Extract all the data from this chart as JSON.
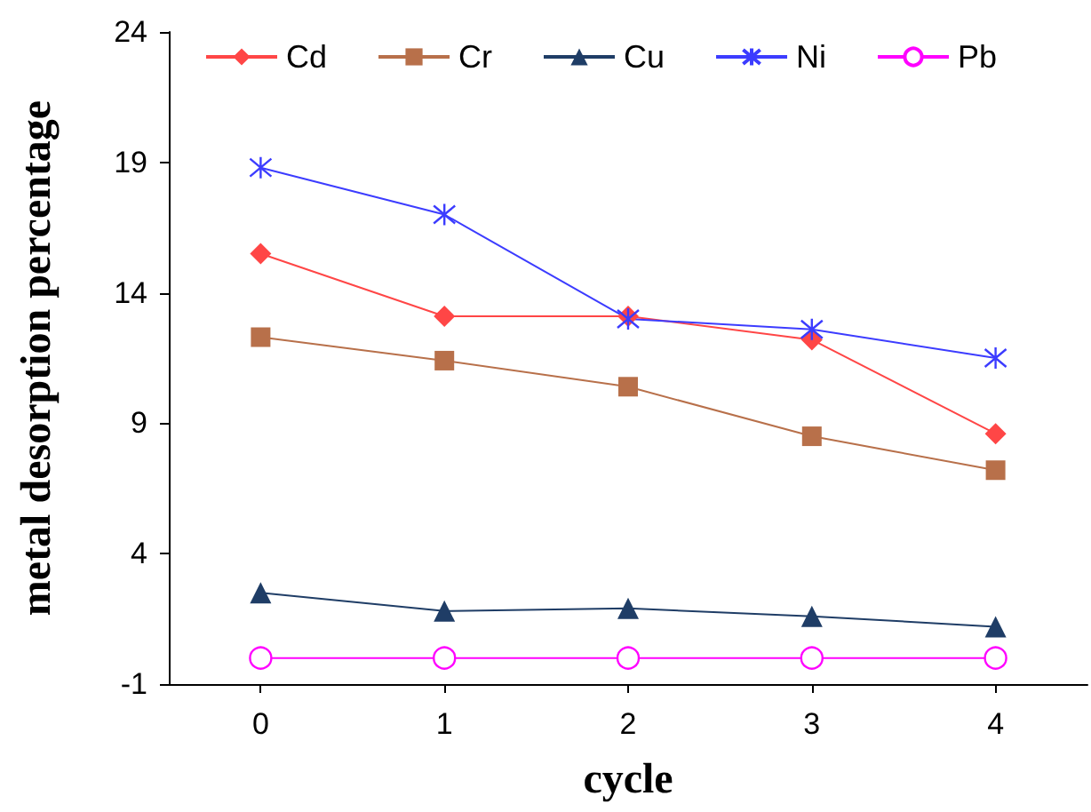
{
  "chart_data": {
    "type": "line",
    "xlabel": "cycle",
    "ylabel": "metal desorption percentage",
    "x": [
      0,
      1,
      2,
      3,
      4
    ],
    "xlim": [
      -0.5,
      4.5
    ],
    "xticks": [
      0,
      1,
      2,
      3,
      4
    ],
    "ylim": [
      -1,
      24
    ],
    "yticks": [
      -1,
      4,
      9,
      14,
      19,
      24
    ],
    "grid": false,
    "legend": "top",
    "line_style": "solid",
    "series": [
      {
        "name": "Cd",
        "color": "#ff4646",
        "marker": "diamond",
        "values": [
          15.5,
          13.1,
          13.1,
          12.2,
          8.6
        ]
      },
      {
        "name": "Cr",
        "color": "#b8704a",
        "marker": "square",
        "values": [
          12.3,
          11.4,
          10.4,
          8.5,
          7.2
        ]
      },
      {
        "name": "Cu",
        "color": "#1f3d66",
        "marker": "triangle",
        "values": [
          2.5,
          1.8,
          1.9,
          1.6,
          1.2
        ]
      },
      {
        "name": "Ni",
        "color": "#3c3cff",
        "marker": "cross",
        "values": [
          18.8,
          17.0,
          13.0,
          12.6,
          11.5
        ]
      },
      {
        "name": "Pb",
        "color": "#ff00ff",
        "marker": "circle",
        "values": [
          0,
          0,
          0,
          0,
          0
        ]
      }
    ]
  }
}
